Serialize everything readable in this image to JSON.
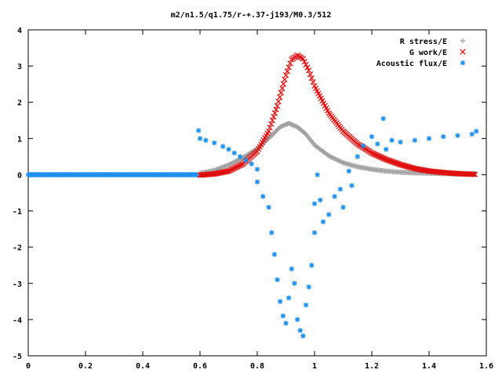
{
  "chart_data": {
    "type": "scatter",
    "title": "m2/n1.5/q1.75/r-+.37-j193/M0.3/512",
    "xlabel": "",
    "ylabel": "",
    "xlim": [
      0,
      1.6
    ],
    "ylim": [
      -5,
      4
    ],
    "x_ticks": [
      "0",
      "0.2",
      "0.4",
      "0.6",
      "0.8",
      "1",
      "1.2",
      "1.4",
      "1.6"
    ],
    "y_ticks": [
      "4",
      "3",
      "2",
      "1",
      "0",
      "-1",
      "-2",
      "-3",
      "-4",
      "-5"
    ],
    "grid": false,
    "legend_position": "top-right",
    "series": [
      {
        "name": "R stress/E",
        "marker": "plus",
        "color": "#a0a0a0",
        "points": [
          [
            0.6,
            0.04
          ],
          [
            0.65,
            0.12
          ],
          [
            0.7,
            0.27
          ],
          [
            0.75,
            0.47
          ],
          [
            0.8,
            0.72
          ],
          [
            0.85,
            1.08
          ],
          [
            0.88,
            1.32
          ],
          [
            0.91,
            1.42
          ],
          [
            0.94,
            1.32
          ],
          [
            0.97,
            1.12
          ],
          [
            1.0,
            0.82
          ],
          [
            1.05,
            0.52
          ],
          [
            1.1,
            0.33
          ],
          [
            1.15,
            0.22
          ],
          [
            1.2,
            0.15
          ],
          [
            1.25,
            0.1
          ],
          [
            1.3,
            0.07
          ],
          [
            1.35,
            0.05
          ],
          [
            1.4,
            0.04
          ],
          [
            1.45,
            0.03
          ],
          [
            1.5,
            0.02
          ],
          [
            1.56,
            0.02
          ]
        ]
      },
      {
        "name": "G work/E",
        "marker": "cross",
        "color": "#e01010",
        "points": [
          [
            0.6,
            -0.01
          ],
          [
            0.65,
            0.02
          ],
          [
            0.7,
            0.1
          ],
          [
            0.75,
            0.3
          ],
          [
            0.8,
            0.65
          ],
          [
            0.84,
            1.2
          ],
          [
            0.87,
            1.9
          ],
          [
            0.9,
            2.75
          ],
          [
            0.92,
            3.18
          ],
          [
            0.94,
            3.3
          ],
          [
            0.96,
            3.2
          ],
          [
            0.98,
            2.88
          ],
          [
            1.0,
            2.45
          ],
          [
            1.05,
            1.7
          ],
          [
            1.1,
            1.2
          ],
          [
            1.15,
            0.85
          ],
          [
            1.2,
            0.6
          ],
          [
            1.25,
            0.42
          ],
          [
            1.3,
            0.28
          ],
          [
            1.35,
            0.17
          ],
          [
            1.4,
            0.1
          ],
          [
            1.45,
            0.06
          ],
          [
            1.5,
            0.03
          ],
          [
            1.56,
            0.01
          ]
        ]
      },
      {
        "name": "Acoustic flux/E",
        "marker": "star",
        "color": "#1e90f0",
        "points": [
          [
            0.595,
            1.22
          ],
          [
            0.6,
            1.0
          ],
          [
            0.62,
            0.95
          ],
          [
            0.65,
            0.88
          ],
          [
            0.68,
            0.78
          ],
          [
            0.7,
            0.7
          ],
          [
            0.72,
            0.6
          ],
          [
            0.74,
            0.5
          ],
          [
            0.76,
            0.4
          ],
          [
            0.78,
            0.3
          ],
          [
            0.8,
            0.15
          ],
          [
            0.8,
            -0.2
          ],
          [
            0.82,
            -0.6
          ],
          [
            0.84,
            -0.9
          ],
          [
            0.85,
            -1.6
          ],
          [
            0.86,
            -2.2
          ],
          [
            0.87,
            -2.9
          ],
          [
            0.88,
            -3.5
          ],
          [
            0.89,
            -3.9
          ],
          [
            0.9,
            -4.1
          ],
          [
            0.91,
            -3.4
          ],
          [
            0.92,
            -2.6
          ],
          [
            0.93,
            -3.0
          ],
          [
            0.94,
            -4.0
          ],
          [
            0.95,
            -4.3
          ],
          [
            0.96,
            -4.45
          ],
          [
            0.97,
            -3.6
          ],
          [
            0.98,
            -3.1
          ],
          [
            0.99,
            -2.5
          ],
          [
            1.0,
            -1.6
          ],
          [
            1.0,
            -0.8
          ],
          [
            1.01,
            0.0
          ],
          [
            1.02,
            -0.7
          ],
          [
            1.03,
            -1.3
          ],
          [
            1.05,
            -1.1
          ],
          [
            1.07,
            -0.6
          ],
          [
            1.09,
            -0.4
          ],
          [
            1.1,
            -0.9
          ],
          [
            1.12,
            0.1
          ],
          [
            1.13,
            -0.3
          ],
          [
            1.15,
            0.5
          ],
          [
            1.17,
            0.8
          ],
          [
            1.2,
            1.05
          ],
          [
            1.22,
            0.85
          ],
          [
            1.24,
            1.55
          ],
          [
            1.25,
            0.7
          ],
          [
            1.27,
            0.95
          ],
          [
            1.3,
            0.9
          ],
          [
            1.35,
            0.95
          ],
          [
            1.4,
            1.0
          ],
          [
            1.45,
            1.05
          ],
          [
            1.5,
            1.08
          ],
          [
            1.55,
            1.12
          ],
          [
            1.565,
            1.2
          ]
        ]
      }
    ],
    "baseline_segment": {
      "series": "Acoustic flux/E",
      "x_from": 0,
      "x_to": 0.59,
      "y": 0
    }
  }
}
